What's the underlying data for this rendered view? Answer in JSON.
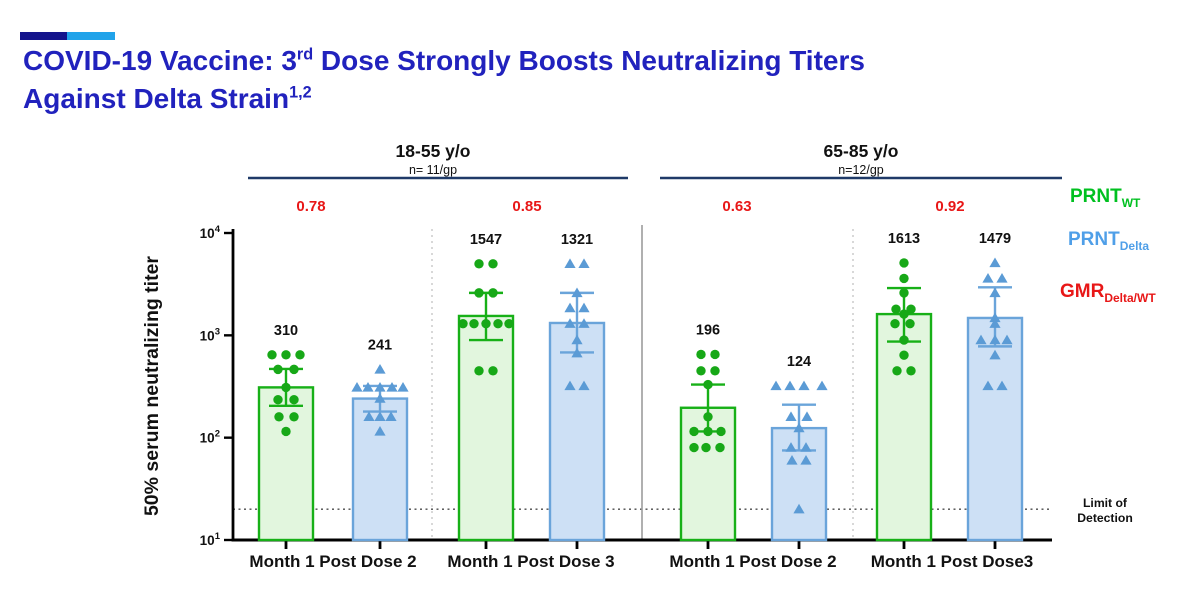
{
  "header": {
    "accent_bar_dark_color": "#14148c",
    "accent_bar_light_color": "#21a3ea",
    "title_color": "#2122bd",
    "title_line1_pre": "COVID-19 Vaccine: 3",
    "title_line1_sup": "rd",
    "title_line1_post": " Dose Strongly Boosts Neutralizing Titers",
    "title_line2": "Against Delta Strain",
    "title_line2_sup": "1,2"
  },
  "legend": {
    "items": [
      {
        "text": "PRNT",
        "sub": "WT",
        "color": "#00c020"
      },
      {
        "text": "PRNT",
        "sub": "Delta",
        "color": "#4f9fe8"
      },
      {
        "text": "GMR",
        "sub": "Delta/WT",
        "color": "#e81717"
      }
    ]
  },
  "chart_data": {
    "type": "bar",
    "yscale": "log",
    "ylabel": "50% serum neutralizing titer",
    "ylim": [
      10,
      10000
    ],
    "ytick_exponents": [
      1,
      2,
      3,
      4
    ],
    "grid": false,
    "limit_of_detection": {
      "value": 20,
      "label_lines": [
        "Limit of",
        "Detection"
      ]
    },
    "groups": [
      {
        "title": "18-55 y/o",
        "subtitle": "n= 11/gp"
      },
      {
        "title": "65-85 y/o",
        "subtitle": "n=12/gp"
      }
    ],
    "categories": [
      "Month 1 Post Dose 2",
      "Month 1 Post Dose 3",
      "Month 1 Post Dose 2",
      "Month 1 Post Dose3"
    ],
    "gmr_labels": [
      "0.78",
      "0.85",
      "0.63",
      "0.92"
    ],
    "colors": {
      "wt": {
        "bar_fill": "#e2f6de",
        "bar_stroke": "#17b017",
        "point": "#17a817"
      },
      "delta": {
        "bar_fill": "#cde0f5",
        "bar_stroke": "#6aa4da",
        "point": "#5b9bd5"
      },
      "gmr_text": "#e81717",
      "group_line": "#1f3a68",
      "axis": "#000000",
      "separator_dotted": "#bdbdbd",
      "separator_solid": "#9d9d9d",
      "lod_line": "#4a4a4a"
    },
    "bars": [
      {
        "series": "wt",
        "group": 0,
        "category_index": 0,
        "gmt": 310,
        "err_hi": 470,
        "err_lo": 205,
        "points": [
          [
            -14,
            645
          ],
          [
            0,
            645
          ],
          [
            14,
            645
          ],
          [
            -8,
            465
          ],
          [
            8,
            465
          ],
          [
            0,
            310
          ],
          [
            -8,
            235
          ],
          [
            8,
            235
          ],
          [
            -7,
            160
          ],
          [
            8,
            160
          ],
          [
            0,
            115
          ]
        ]
      },
      {
        "series": "delta",
        "group": 0,
        "category_index": 0,
        "gmt": 241,
        "err_hi": 320,
        "err_lo": 180,
        "points": [
          [
            0,
            465
          ],
          [
            -23,
            310
          ],
          [
            -12,
            310
          ],
          [
            0,
            310
          ],
          [
            12,
            310
          ],
          [
            23,
            310
          ],
          [
            0,
            241
          ],
          [
            -11,
            160
          ],
          [
            0,
            160
          ],
          [
            11,
            160
          ],
          [
            0,
            115
          ]
        ]
      },
      {
        "series": "wt",
        "group": 0,
        "category_index": 1,
        "gmt": 1547,
        "err_hi": 2600,
        "err_lo": 900,
        "points": [
          [
            -7,
            5000
          ],
          [
            7,
            5000
          ],
          [
            -7,
            2600
          ],
          [
            7,
            2600
          ],
          [
            -23,
            1300
          ],
          [
            -12,
            1300
          ],
          [
            0,
            1300
          ],
          [
            12,
            1300
          ],
          [
            23,
            1300
          ],
          [
            -7,
            450
          ],
          [
            7,
            450
          ]
        ]
      },
      {
        "series": "delta",
        "group": 0,
        "category_index": 1,
        "gmt": 1321,
        "err_hi": 2600,
        "err_lo": 680,
        "points": [
          [
            -7,
            5000
          ],
          [
            7,
            5000
          ],
          [
            0,
            2600
          ],
          [
            -7,
            1850
          ],
          [
            7,
            1850
          ],
          [
            -7,
            1300
          ],
          [
            7,
            1300
          ],
          [
            0,
            900
          ],
          [
            0,
            670
          ],
          [
            -7,
            320
          ],
          [
            7,
            320
          ]
        ]
      },
      {
        "series": "wt",
        "group": 1,
        "category_index": 2,
        "gmt": 196,
        "err_hi": 330,
        "err_lo": 115,
        "points": [
          [
            -7,
            650
          ],
          [
            7,
            650
          ],
          [
            -7,
            450
          ],
          [
            7,
            450
          ],
          [
            0,
            330
          ],
          [
            0,
            160
          ],
          [
            -14,
            115
          ],
          [
            0,
            115
          ],
          [
            13,
            115
          ],
          [
            -14,
            80
          ],
          [
            -2,
            80
          ],
          [
            12,
            80
          ]
        ]
      },
      {
        "series": "delta",
        "group": 1,
        "category_index": 2,
        "gmt": 124,
        "err_hi": 210,
        "err_lo": 75,
        "points": [
          [
            -23,
            320
          ],
          [
            -9,
            320
          ],
          [
            5,
            320
          ],
          [
            23,
            320
          ],
          [
            -8,
            160
          ],
          [
            8,
            160
          ],
          [
            0,
            124
          ],
          [
            -8,
            80
          ],
          [
            7,
            80
          ],
          [
            -7,
            60
          ],
          [
            7,
            60
          ],
          [
            0,
            20
          ]
        ]
      },
      {
        "series": "wt",
        "group": 1,
        "category_index": 3,
        "gmt": 1613,
        "err_hi": 2900,
        "err_lo": 870,
        "points": [
          [
            0,
            5100
          ],
          [
            0,
            3600
          ],
          [
            0,
            2600
          ],
          [
            -8,
            1800
          ],
          [
            7,
            1800
          ],
          [
            0,
            1613
          ],
          [
            -9,
            1300
          ],
          [
            6,
            1300
          ],
          [
            0,
            900
          ],
          [
            0,
            640
          ],
          [
            -7,
            450
          ],
          [
            7,
            450
          ]
        ]
      },
      {
        "series": "delta",
        "group": 1,
        "category_index": 3,
        "gmt": 1479,
        "err_hi": 2950,
        "err_lo": 780,
        "points": [
          [
            0,
            5100
          ],
          [
            -7,
            3600
          ],
          [
            7,
            3600
          ],
          [
            0,
            2600
          ],
          [
            0,
            1479
          ],
          [
            0,
            1300
          ],
          [
            -14,
            900
          ],
          [
            0,
            900
          ],
          [
            12,
            900
          ],
          [
            0,
            640
          ],
          [
            -7,
            320
          ],
          [
            7,
            320
          ]
        ]
      }
    ]
  }
}
